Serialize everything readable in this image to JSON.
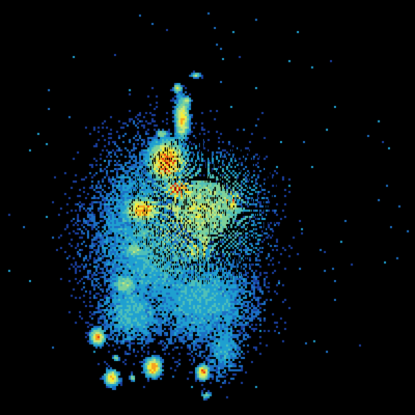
{
  "image": {
    "kind": "radar-reflectivity-scan",
    "background_color": "#000000",
    "color_scale": [
      "#1a3fa0",
      "#1c6fc4",
      "#1fa0d0",
      "#4fc0b8",
      "#7fd29a",
      "#c8e87a",
      "#f5ee3a",
      "#f6a21e",
      "#e23a10",
      "#b00000"
    ]
  }
}
